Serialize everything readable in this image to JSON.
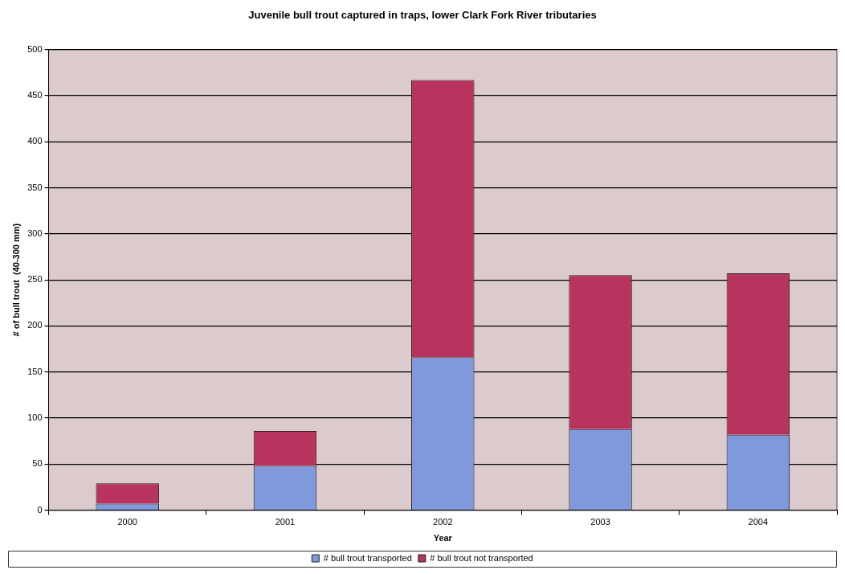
{
  "chart_data": {
    "type": "bar",
    "title": "Juvenile bull trout captured in traps, lower Clark Fork River tributaries",
    "xlabel": "Year",
    "ylabel": "# of bull trout  (40-300 mm)",
    "categories": [
      "2000",
      "2001",
      "2002",
      "2003",
      "2004"
    ],
    "stacked": true,
    "series": [
      {
        "name": "# bull trout transported",
        "color": "#8098dc",
        "values": [
          7,
          48,
          166,
          88,
          82
        ]
      },
      {
        "name": "# bull trout not transported",
        "color": "#b8335e",
        "values": [
          22,
          38,
          301,
          167,
          175
        ]
      }
    ],
    "ylim": [
      0,
      500
    ],
    "yticks": [
      0,
      50,
      100,
      150,
      200,
      250,
      300,
      350,
      400,
      450,
      500
    ],
    "grid": "y",
    "legend": "bottom"
  }
}
